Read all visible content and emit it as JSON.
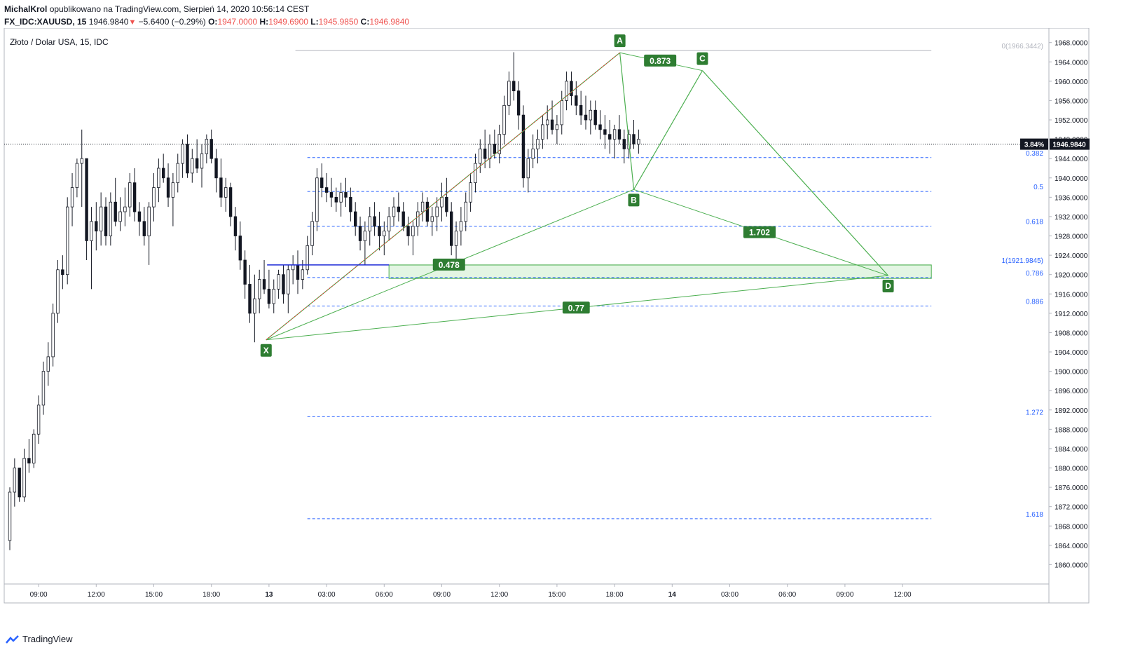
{
  "header": {
    "author": "MichalKrol",
    "published_text": "opublikowano na TradingView.com, Sierpień 14, 2020 10:56:14 CEST",
    "symbol": "FX_IDC:XAUUSD, 15",
    "last": "1946.9840",
    "change": "−5.6400 (−0.29%)",
    "o_label": "O:",
    "o": "1947.0000",
    "h_label": "H:",
    "h": "1949.6900",
    "l_label": "L:",
    "l": "1945.9850",
    "c_label": "C:",
    "c": "1946.9840"
  },
  "chart_title": "Złoto / Dolar USA, 15, IDC",
  "footer": {
    "brand": "TradingView",
    "logo_icon": "tradingview-logo-icon"
  },
  "colors": {
    "candle": "#131722",
    "pattern": "#4caf50",
    "pattern_label_bg": "#2e7d32",
    "fib": "#2962ff",
    "zone_fill": "#e3f5e3",
    "blue_line": "#1e2bd8",
    "red_dotted": "#e53935",
    "price_tag_bg": "#131722"
  },
  "chart_data": {
    "type": "candlestick",
    "y_axis": {
      "min": 1856,
      "max": 1971,
      "ticks": [
        1860,
        1864,
        1868,
        1872,
        1876,
        1880,
        1884,
        1888,
        1892,
        1896,
        1900,
        1904,
        1908,
        1912,
        1916,
        1920,
        1924,
        1928,
        1932,
        1936,
        1940,
        1944,
        1948,
        1952,
        1956,
        1960,
        1964,
        1968
      ],
      "tick_labels": [
        "1860.0000",
        "1864.0000",
        "1868.0000",
        "1872.0000",
        "1876.0000",
        "1880.0000",
        "1884.0000",
        "1888.0000",
        "1892.0000",
        "1896.0000",
        "1900.0000",
        "1904.0000",
        "1908.0000",
        "1912.0000",
        "1916.0000",
        "1920.0000",
        "1924.0000",
        "1928.0000",
        "1932.0000",
        "1936.0000",
        "1940.0000",
        "1944.0000",
        "1948.0000",
        "1952.0000",
        "1956.0000",
        "1960.0000",
        "1964.0000",
        "1968.0000"
      ]
    },
    "x_axis": {
      "labels": [
        "09:00",
        "12:00",
        "15:00",
        "18:00",
        "13",
        "03:00",
        "06:00",
        "09:00",
        "12:00",
        "15:00",
        "18:00",
        "14",
        "03:00",
        "06:00",
        "09:00",
        "12:00"
      ],
      "bold": [
        false,
        false,
        false,
        false,
        true,
        false,
        false,
        false,
        false,
        false,
        false,
        true,
        false,
        false,
        false,
        false
      ],
      "slot": [
        6,
        18,
        30,
        42,
        54,
        66,
        78,
        90,
        102,
        114,
        126,
        138,
        150,
        162,
        174,
        186
      ]
    },
    "current_price": {
      "value": 1946.984,
      "label": "1946.9840",
      "percent_label": "3.84%"
    },
    "harmonic": {
      "points": [
        {
          "label": "X",
          "slot": 53.4,
          "price": 1906.5
        },
        {
          "label": "A",
          "slot": 127.1,
          "price": 1965.9
        },
        {
          "label": "B",
          "slot": 130.0,
          "price": 1937.6
        },
        {
          "label": "C",
          "slot": 144.3,
          "price": 1962.2
        },
        {
          "label": "D",
          "slot": 183.0,
          "price": 1919.8
        }
      ],
      "ratios": [
        {
          "label": "0.873",
          "slot": 135.5,
          "price": 1964.2
        },
        {
          "label": "0.478",
          "slot": 91.5,
          "price": 1922.0
        },
        {
          "label": "1.702",
          "slot": 156.2,
          "price": 1928.7
        },
        {
          "label": "0.77",
          "slot": 118.0,
          "price": 1913.1
        }
      ]
    },
    "fib_levels": [
      {
        "label": "0(1966.3442)",
        "price": 1966.3442
      },
      {
        "label": "0.382",
        "price": 1944.2
      },
      {
        "label": "0.5",
        "price": 1937.2
      },
      {
        "label": "0.618",
        "price": 1930.0
      },
      {
        "label": "1(1921.9845)",
        "price": 1921.9845
      },
      {
        "label": "0.786",
        "price": 1919.4
      },
      {
        "label": "0.886",
        "price": 1913.5
      },
      {
        "label": "1.272",
        "price": 1890.6
      },
      {
        "label": "1.618",
        "price": 1869.5
      }
    ],
    "zone": {
      "slot_start": 79,
      "slot_end": 192,
      "price_top": 1922.0,
      "price_bottom": 1919.2
    },
    "horizontal_line": {
      "slot_start": 53.6,
      "slot_end": 79,
      "price": 1922.0
    },
    "candles_ohlc": [
      [
        1865,
        1876,
        1863,
        1875
      ],
      [
        1875,
        1882,
        1872,
        1880
      ],
      [
        1880,
        1878,
        1873,
        1874
      ],
      [
        1874,
        1884,
        1873,
        1882
      ],
      [
        1882,
        1886,
        1879,
        1881
      ],
      [
        1881,
        1888,
        1880,
        1887
      ],
      [
        1887,
        1895,
        1885,
        1893
      ],
      [
        1893,
        1902,
        1891,
        1900
      ],
      [
        1900,
        1906,
        1897,
        1903
      ],
      [
        1903,
        1914,
        1901,
        1912
      ],
      [
        1912,
        1923,
        1910,
        1921
      ],
      [
        1921,
        1924,
        1917,
        1920
      ],
      [
        1920,
        1936,
        1918,
        1934
      ],
      [
        1934,
        1941,
        1930,
        1938
      ],
      [
        1938,
        1944,
        1936,
        1943
      ],
      [
        1943,
        1950,
        1934,
        1944
      ],
      [
        1944,
        1932,
        1923,
        1927
      ],
      [
        1927,
        1934,
        1917,
        1931
      ],
      [
        1931,
        1935,
        1925,
        1929
      ],
      [
        1929,
        1937,
        1926,
        1934
      ],
      [
        1934,
        1936,
        1926,
        1928
      ],
      [
        1928,
        1937,
        1926,
        1935
      ],
      [
        1935,
        1940,
        1930,
        1931
      ],
      [
        1931,
        1936,
        1929,
        1933
      ],
      [
        1933,
        1938,
        1930,
        1934
      ],
      [
        1934,
        1941,
        1932,
        1939
      ],
      [
        1939,
        1942,
        1931,
        1933
      ],
      [
        1933,
        1935,
        1928,
        1931
      ],
      [
        1931,
        1934,
        1926,
        1928
      ],
      [
        1928,
        1935,
        1922,
        1934
      ],
      [
        1934,
        1941,
        1931,
        1938
      ],
      [
        1938,
        1944,
        1935,
        1942
      ],
      [
        1942,
        1945,
        1939,
        1940
      ],
      [
        1940,
        1943,
        1934,
        1936
      ],
      [
        1936,
        1941,
        1930,
        1939
      ],
      [
        1939,
        1945,
        1937,
        1943
      ],
      [
        1943,
        1948,
        1940,
        1947
      ],
      [
        1947,
        1949,
        1940,
        1941
      ],
      [
        1941,
        1946,
        1939,
        1944
      ],
      [
        1944,
        1948,
        1941,
        1942
      ],
      [
        1942,
        1947,
        1938,
        1945
      ],
      [
        1945,
        1949,
        1943,
        1948
      ],
      [
        1948,
        1950,
        1943,
        1944
      ],
      [
        1944,
        1946,
        1937,
        1940
      ],
      [
        1940,
        1944,
        1934,
        1936
      ],
      [
        1936,
        1940,
        1933,
        1938
      ],
      [
        1938,
        1939,
        1930,
        1932
      ],
      [
        1932,
        1934,
        1925,
        1928
      ],
      [
        1928,
        1931,
        1921,
        1923
      ],
      [
        1923,
        1925,
        1915,
        1918
      ],
      [
        1918,
        1922,
        1910,
        1912
      ],
      [
        1912,
        1920,
        1906,
        1915
      ],
      [
        1915,
        1921,
        1912,
        1919
      ],
      [
        1919,
        1923,
        1916,
        1917
      ],
      [
        1917,
        1921,
        1913,
        1914
      ],
      [
        1914,
        1919,
        1912,
        1917
      ],
      [
        1917,
        1921,
        1915,
        1920
      ],
      [
        1920,
        1922,
        1914,
        1916
      ],
      [
        1916,
        1922,
        1912,
        1921
      ],
      [
        1921,
        1924,
        1918,
        1922
      ],
      [
        1922,
        1925,
        1916,
        1919
      ],
      [
        1919,
        1923,
        1917,
        1921
      ],
      [
        1921,
        1928,
        1920,
        1926
      ],
      [
        1926,
        1933,
        1924,
        1931
      ],
      [
        1931,
        1942,
        1929,
        1940
      ],
      [
        1940,
        1943,
        1936,
        1938
      ],
      [
        1938,
        1941,
        1935,
        1937
      ],
      [
        1937,
        1940,
        1934,
        1936
      ],
      [
        1936,
        1938,
        1933,
        1935
      ],
      [
        1935,
        1939,
        1932,
        1937
      ],
      [
        1937,
        1940,
        1934,
        1936
      ],
      [
        1936,
        1938,
        1931,
        1933
      ],
      [
        1933,
        1935,
        1928,
        1930
      ],
      [
        1930,
        1932,
        1925,
        1927
      ],
      [
        1927,
        1931,
        1922,
        1929
      ],
      [
        1929,
        1934,
        1926,
        1932
      ],
      [
        1932,
        1935,
        1928,
        1930
      ],
      [
        1930,
        1933,
        1925,
        1928
      ],
      [
        1928,
        1931,
        1924,
        1929
      ],
      [
        1929,
        1934,
        1927,
        1932
      ],
      [
        1932,
        1936,
        1930,
        1934
      ],
      [
        1934,
        1937,
        1931,
        1933
      ],
      [
        1933,
        1935,
        1929,
        1930
      ],
      [
        1930,
        1932,
        1926,
        1928
      ],
      [
        1928,
        1931,
        1924,
        1930
      ],
      [
        1930,
        1935,
        1928,
        1933
      ],
      [
        1933,
        1937,
        1931,
        1935
      ],
      [
        1935,
        1936,
        1930,
        1931
      ],
      [
        1931,
        1934,
        1928,
        1932
      ],
      [
        1932,
        1936,
        1929,
        1934
      ],
      [
        1934,
        1939,
        1931,
        1936
      ],
      [
        1936,
        1940,
        1932,
        1933
      ],
      [
        1933,
        1935,
        1924,
        1926
      ],
      [
        1926,
        1931,
        1922,
        1929
      ],
      [
        1929,
        1934,
        1926,
        1931
      ],
      [
        1931,
        1937,
        1929,
        1935
      ],
      [
        1935,
        1941,
        1933,
        1939
      ],
      [
        1939,
        1945,
        1937,
        1943
      ],
      [
        1943,
        1948,
        1941,
        1946
      ],
      [
        1946,
        1950,
        1942,
        1944
      ],
      [
        1944,
        1949,
        1942,
        1947
      ],
      [
        1947,
        1950,
        1944,
        1945
      ],
      [
        1945,
        1951,
        1943,
        1949
      ],
      [
        1949,
        1957,
        1947,
        1955
      ],
      [
        1955,
        1962,
        1953,
        1960
      ],
      [
        1960,
        1966,
        1956,
        1958
      ],
      [
        1958,
        1960,
        1950,
        1953
      ],
      [
        1953,
        1955,
        1938,
        1940
      ],
      [
        1940,
        1946,
        1937,
        1944
      ],
      [
        1944,
        1949,
        1942,
        1946
      ],
      [
        1946,
        1950,
        1943,
        1948
      ],
      [
        1948,
        1953,
        1946,
        1951
      ],
      [
        1951,
        1955,
        1948,
        1952
      ],
      [
        1952,
        1956,
        1949,
        1950
      ],
      [
        1950,
        1953,
        1947,
        1951
      ],
      [
        1951,
        1958,
        1949,
        1956
      ],
      [
        1956,
        1962,
        1954,
        1960
      ],
      [
        1960,
        1962,
        1955,
        1957
      ],
      [
        1957,
        1960,
        1953,
        1955
      ],
      [
        1955,
        1958,
        1951,
        1953
      ],
      [
        1953,
        1957,
        1950,
        1952
      ],
      [
        1952,
        1956,
        1949,
        1954
      ],
      [
        1954,
        1956,
        1950,
        1951
      ],
      [
        1951,
        1954,
        1948,
        1950
      ],
      [
        1950,
        1953,
        1946,
        1949
      ],
      [
        1949,
        1952,
        1945,
        1948
      ],
      [
        1948,
        1951,
        1944,
        1950
      ],
      [
        1950,
        1953,
        1947,
        1948
      ],
      [
        1948,
        1950,
        1943,
        1946
      ],
      [
        1946,
        1950,
        1944,
        1949
      ],
      [
        1949,
        1952,
        1946,
        1947
      ],
      [
        1947,
        1950,
        1945,
        1948
      ]
    ]
  }
}
